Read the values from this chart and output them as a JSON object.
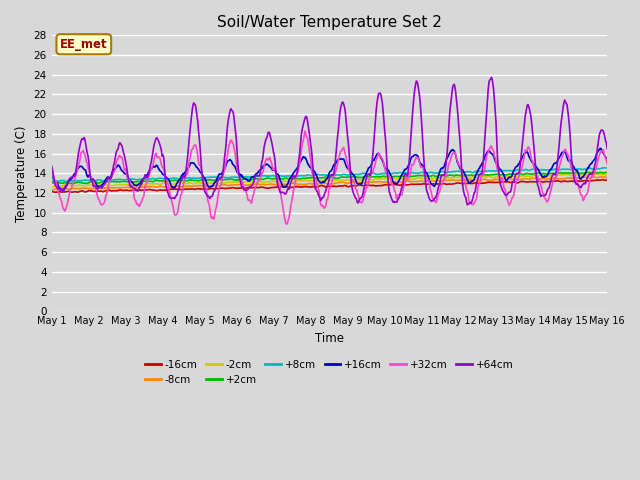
{
  "title": "Soil/Water Temperature Set 2",
  "xlabel": "Time",
  "ylabel": "Temperature (C)",
  "ylim": [
    0,
    28
  ],
  "xlim": [
    0,
    15
  ],
  "yticks": [
    0,
    2,
    4,
    6,
    8,
    10,
    12,
    14,
    16,
    18,
    20,
    22,
    24,
    26,
    28
  ],
  "xtick_labels": [
    "May 1",
    "May 2",
    "May 3",
    "May 4",
    "May 5",
    "May 6",
    "May 7",
    "May 8",
    "May 9",
    "May 10",
    "May 11",
    "May 12",
    "May 13",
    "May 14",
    "May 15",
    "May 16"
  ],
  "background_color": "#d8d8d8",
  "plot_bg_color": "#d8d8d8",
  "grid_color": "#ffffff",
  "annotation_text": "EE_met",
  "annotation_bg": "#ffffcc",
  "annotation_border": "#aa7700",
  "series": {
    "-16cm": {
      "color": "#cc0000",
      "lw": 1.2
    },
    "-8cm": {
      "color": "#ff8800",
      "lw": 1.2
    },
    "-2cm": {
      "color": "#cccc00",
      "lw": 1.2
    },
    "+2cm": {
      "color": "#00bb00",
      "lw": 1.2
    },
    "+8cm": {
      "color": "#00bbbb",
      "lw": 1.2
    },
    "+16cm": {
      "color": "#0000cc",
      "lw": 1.2
    },
    "+32cm": {
      "color": "#ff44cc",
      "lw": 1.2
    },
    "+64cm": {
      "color": "#9900cc",
      "lw": 1.2
    }
  }
}
